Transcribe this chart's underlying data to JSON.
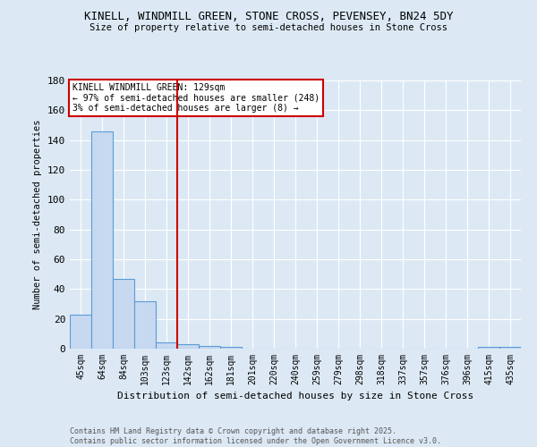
{
  "title_line1": "KINELL, WINDMILL GREEN, STONE CROSS, PEVENSEY, BN24 5DY",
  "title_line2": "Size of property relative to semi-detached houses in Stone Cross",
  "xlabel": "Distribution of semi-detached houses by size in Stone Cross",
  "ylabel": "Number of semi-detached properties",
  "categories": [
    "45sqm",
    "64sqm",
    "84sqm",
    "103sqm",
    "123sqm",
    "142sqm",
    "162sqm",
    "181sqm",
    "201sqm",
    "220sqm",
    "240sqm",
    "259sqm",
    "279sqm",
    "298sqm",
    "318sqm",
    "337sqm",
    "357sqm",
    "376sqm",
    "396sqm",
    "415sqm",
    "435sqm"
  ],
  "values": [
    23,
    146,
    47,
    32,
    4,
    3,
    2,
    1,
    0,
    0,
    0,
    0,
    0,
    0,
    0,
    0,
    0,
    0,
    0,
    1,
    1
  ],
  "bar_color": "#c6d9f0",
  "bar_edge_color": "#5b9bd5",
  "vline_x": 4.5,
  "vline_color": "#cc0000",
  "annotation_title": "KINELL WINDMILL GREEN: 129sqm",
  "annotation_line2": "← 97% of semi-detached houses are smaller (248)",
  "annotation_line3": "3% of semi-detached houses are larger (8) →",
  "annotation_box_color": "#cc0000",
  "ylim": [
    0,
    180
  ],
  "yticks": [
    0,
    20,
    40,
    60,
    80,
    100,
    120,
    140,
    160,
    180
  ],
  "footer_line1": "Contains HM Land Registry data © Crown copyright and database right 2025.",
  "footer_line2": "Contains public sector information licensed under the Open Government Licence v3.0.",
  "bg_color": "#dce9f5",
  "plot_bg_color": "#dce9f5"
}
